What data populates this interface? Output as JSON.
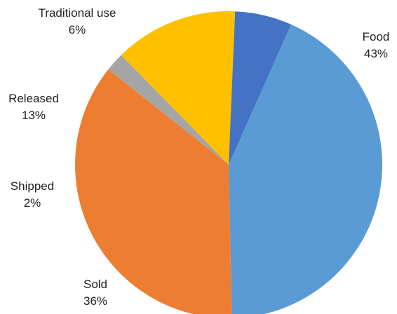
{
  "chart_data": {
    "type": "pie",
    "title": "",
    "legend": "none",
    "slices": [
      {
        "label": "Food",
        "value": 43,
        "value_text": "43%",
        "color": "#5B9BD5"
      },
      {
        "label": "Sold",
        "value": 36,
        "value_text": "36%",
        "color": "#ED7D31"
      },
      {
        "label": "Shipped",
        "value": 2,
        "value_text": "2%",
        "color": "#A5A5A5"
      },
      {
        "label": "Released",
        "value": 13,
        "value_text": "13%",
        "color": "#FFC000"
      },
      {
        "label": "Traditional use",
        "value": 6,
        "value_text": "6%",
        "color": "#4472C4"
      }
    ]
  }
}
